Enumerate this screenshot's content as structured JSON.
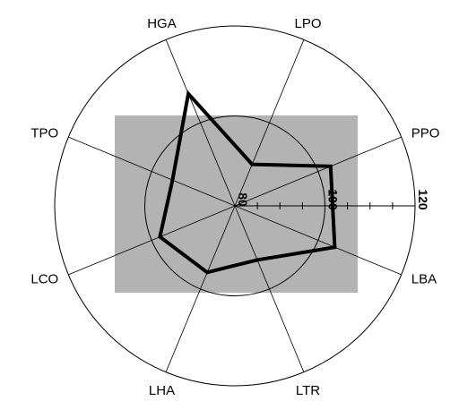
{
  "chart_data": {
    "type": "radar",
    "title": "",
    "categories": [
      "LPO",
      "PPO",
      "LBA",
      "LTR",
      "LHA",
      "LCO",
      "TPO",
      "HGA"
    ],
    "series": [
      {
        "values": [
          90,
          103,
          104,
          93,
          96,
          98,
          95,
          107
        ]
      }
    ],
    "radial_range": [
      80,
      120
    ],
    "radial_ticks": [
      80,
      100,
      120
    ],
    "radial_tick_labels": [
      "80",
      "100",
      "120"
    ],
    "colors": {
      "series": "#000000",
      "panel": "#b3b3b3",
      "grid": "#000000"
    }
  }
}
